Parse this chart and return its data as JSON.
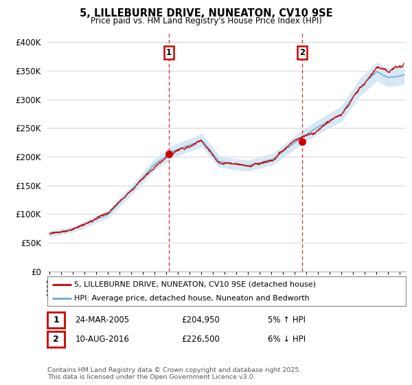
{
  "title": "5, LILLEBURNE DRIVE, NUNEATON, CV10 9SE",
  "subtitle": "Price paid vs. HM Land Registry's House Price Index (HPI)",
  "ylabel_ticks": [
    "£0",
    "£50K",
    "£100K",
    "£150K",
    "£200K",
    "£250K",
    "£300K",
    "£350K",
    "£400K"
  ],
  "ytick_values": [
    0,
    50000,
    100000,
    150000,
    200000,
    250000,
    300000,
    350000,
    400000
  ],
  "ylim": [
    0,
    420000
  ],
  "xlim_start": 1994.8,
  "xlim_end": 2025.5,
  "red_color": "#cc0000",
  "blue_fill_color": "#d6e8f5",
  "blue_line_color": "#6ea8d0",
  "marker1_x": 2005.22,
  "marker1_y": 204950,
  "marker2_x": 2016.61,
  "marker2_y": 226500,
  "vline1_x": 2005.22,
  "vline2_x": 2016.61,
  "legend_line1": "5, LILLEBURNE DRIVE, NUNEATON, CV10 9SE (detached house)",
  "legend_line2": "HPI: Average price, detached house, Nuneaton and Bedworth",
  "annotation1_date": "24-MAR-2005",
  "annotation1_price": "£204,950",
  "annotation1_pct": "5% ↑ HPI",
  "annotation2_date": "10-AUG-2016",
  "annotation2_price": "£226,500",
  "annotation2_pct": "6% ↓ HPI",
  "footer": "Contains HM Land Registry data © Crown copyright and database right 2025.\nThis data is licensed under the Open Government Licence v3.0.",
  "background_color": "#ffffff",
  "grid_color": "#cccccc",
  "hpi_seed": 12,
  "red_seed": 77
}
